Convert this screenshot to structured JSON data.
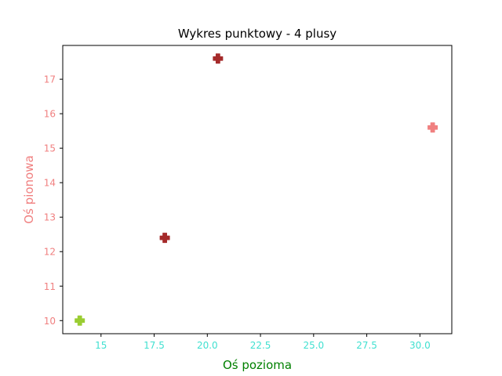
{
  "chart_data": {
    "type": "scatter",
    "title": "Wykres punktowy - 4 plusy",
    "xlabel": "Oś pozioma",
    "ylabel": "Oś pionowa",
    "xlim": [
      13.2,
      31.5
    ],
    "ylim": [
      9.62,
      17.98
    ],
    "xticks": [
      15,
      17.5,
      20.0,
      22.5,
      25.0,
      27.5,
      30.0
    ],
    "xtick_labels": [
      "15",
      "17.5",
      "20.0",
      "22.5",
      "25.0",
      "27.5",
      "30.0"
    ],
    "yticks": [
      10,
      11,
      12,
      13,
      14,
      15,
      16,
      17
    ],
    "ytick_labels": [
      "10",
      "11",
      "12",
      "13",
      "14",
      "15",
      "16",
      "17"
    ],
    "grid": false,
    "marker": "plus-filled",
    "points": [
      {
        "x": 14.0,
        "y": 10.0,
        "color": "#9acd32"
      },
      {
        "x": 18.0,
        "y": 12.4,
        "color": "#a52a2a"
      },
      {
        "x": 20.5,
        "y": 17.6,
        "color": "#a52a2a"
      },
      {
        "x": 30.6,
        "y": 15.6,
        "color": "#f08080"
      }
    ],
    "colors": {
      "title": "#000000",
      "xlabel": "#008000",
      "ylabel": "#f08080",
      "xticks": "#40e0d0",
      "yticks": "#f08080",
      "axes": "#000000"
    }
  }
}
